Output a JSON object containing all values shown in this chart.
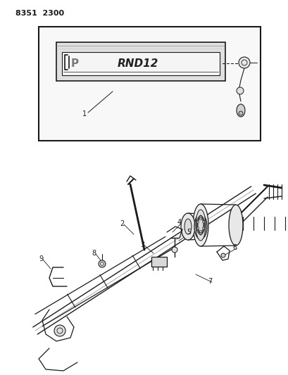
{
  "title_code": "8351 2300",
  "bg_color": "#ffffff",
  "line_color": "#1a1a1a",
  "fig_width": 4.1,
  "fig_height": 5.33,
  "dpi": 100
}
